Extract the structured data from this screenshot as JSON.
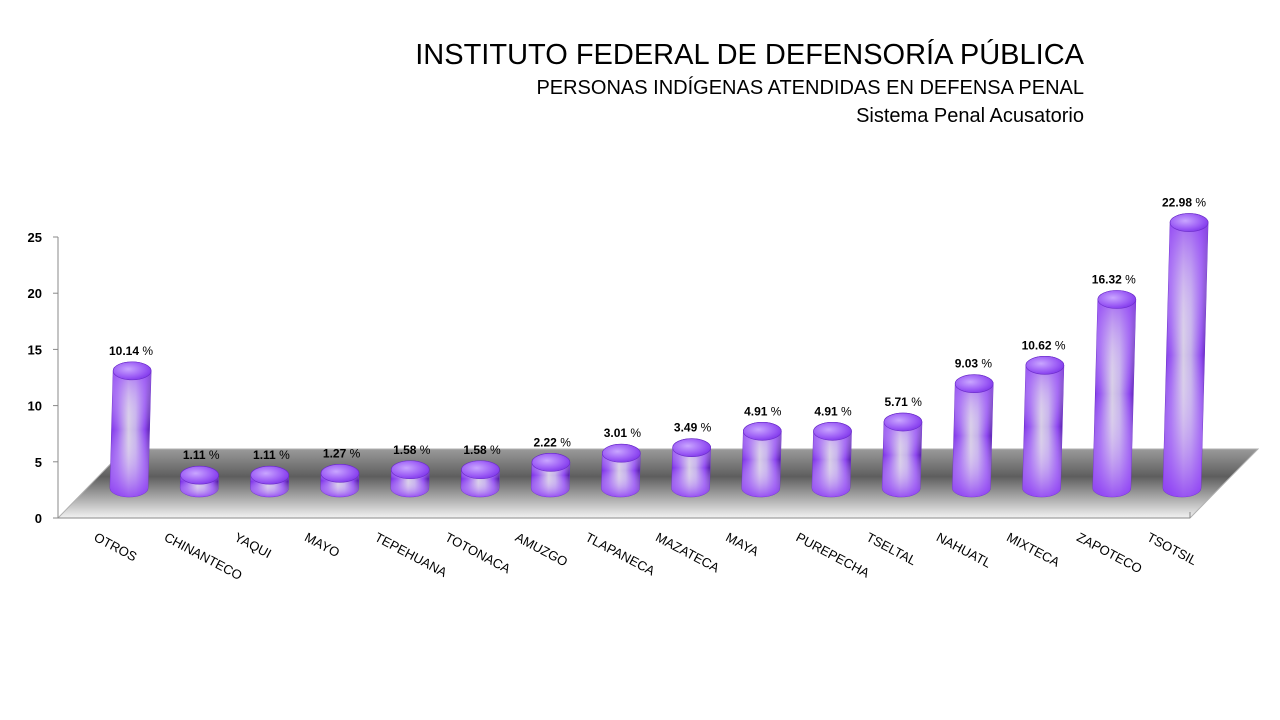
{
  "header": {
    "title": "INSTITUTO FEDERAL DE DEFENSORÍA PÚBLICA",
    "subtitle": "PERSONAS INDÍGENAS ATENDIDAS EN DEFENSA PENAL",
    "subsubtitle": "Sistema Penal Acusatorio"
  },
  "chart_data": {
    "type": "bar",
    "style": "3d-cylinder",
    "categories": [
      "OTROS",
      "CHINANTECO",
      "YAQUI",
      "MAYO",
      "TEPEHUANA",
      "TOTONACA",
      "AMUZGO",
      "TLAPANECA",
      "MAZATECA",
      "MAYA",
      "PUREPECHA",
      "TSELTAL",
      "NAHUATL",
      "MIXTECA",
      "ZAPOTECO",
      "TSOTSIL"
    ],
    "values": [
      10.14,
      1.11,
      1.11,
      1.27,
      1.58,
      1.58,
      2.22,
      3.01,
      3.49,
      4.91,
      4.91,
      5.71,
      9.03,
      10.62,
      16.32,
      22.98
    ],
    "data_labels": [
      "10.14",
      "1.11",
      "1.11",
      "1.27",
      "1.58",
      "1.58",
      "2.22",
      "3.01",
      "3.49",
      "4.91",
      "4.91",
      "5.71",
      "9.03",
      "10.62",
      "16.32",
      "22.98"
    ],
    "label_unit": "%",
    "ylim": [
      0,
      25
    ],
    "yticks": [
      "0",
      "5",
      "10",
      "15",
      "20",
      "25"
    ],
    "xlabel": "",
    "ylabel": "",
    "grid": false,
    "legend": "none",
    "colors": {
      "bar_top": "#a36cf0",
      "bar_side": "#8a3ff0",
      "bar_highlight": "#d8d0e8",
      "bar_dark": "#5a1fb0"
    }
  }
}
